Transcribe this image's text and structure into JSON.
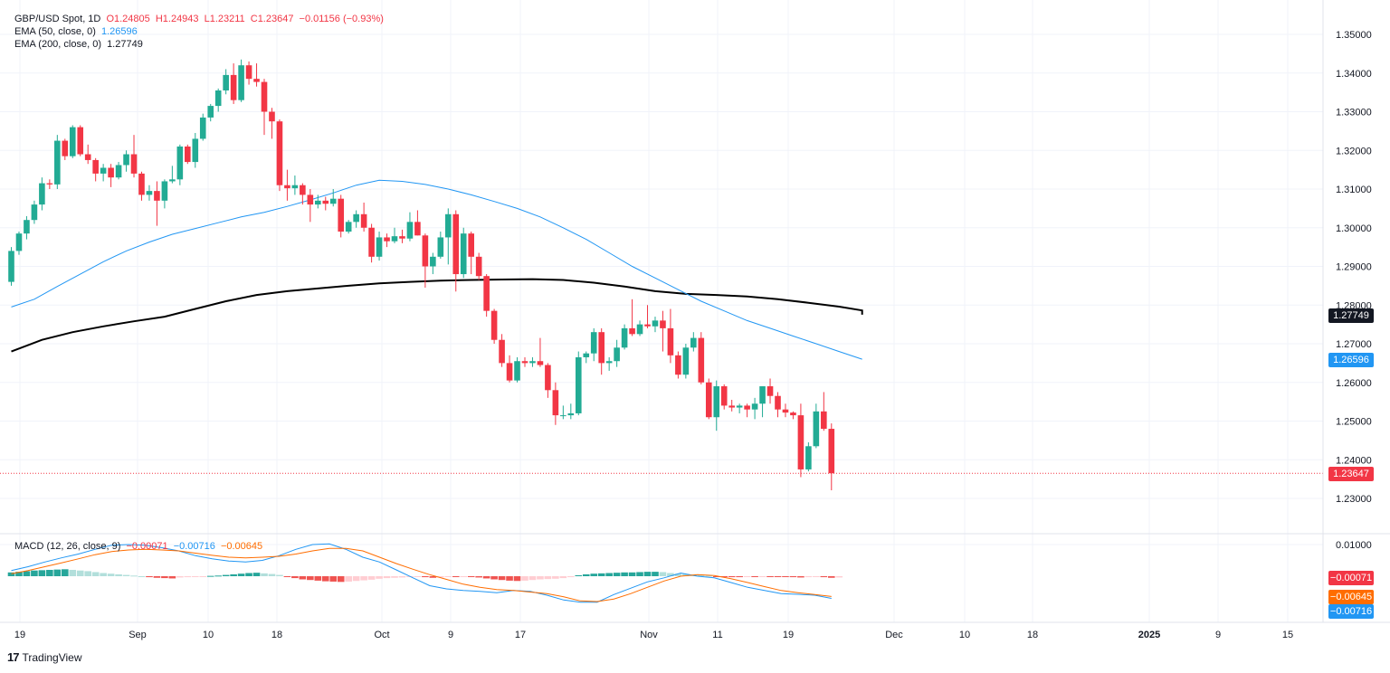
{
  "legend": {
    "symbol": "GBP/USD Spot, 1D",
    "open": "O1.24805",
    "high": "H1.24943",
    "low": "L1.23211",
    "close": "C1.23647",
    "change": "−0.01156 (−0.93%)",
    "ema50_label": "EMA (50, close, 0)",
    "ema50_value": "1.26596",
    "ema200_label": "EMA (200, close, 0)",
    "ema200_value": "1.27749",
    "macd_label": "MACD (12, 26, close, 9)",
    "macd_hist": "−0.00071",
    "macd_line": "−0.00716",
    "macd_signal": "−0.00645"
  },
  "badges": {
    "ema200": "1.27749",
    "ema50": "1.26596",
    "close": "1.23647",
    "hist": "−0.00071",
    "signal": "−0.00645",
    "macd": "−0.00716"
  },
  "branding": {
    "logo": "TradingView"
  },
  "colors": {
    "up": "#22ab94",
    "down": "#f23645",
    "ema50": "#2196f3",
    "ema200": "#000000",
    "macd": "#2196f3",
    "signal": "#ff6d00",
    "hist_pos": "#26a69a",
    "hist_pos_light": "#b2dfdb",
    "hist_neg": "#ef5350",
    "hist_neg_light": "#ffcdd2"
  },
  "chart_data": {
    "type": "candlestick",
    "price_axis_ticks": [
      "1.35000",
      "1.34000",
      "1.33000",
      "1.32000",
      "1.31000",
      "1.30000",
      "1.29000",
      "1.28000",
      "1.27000",
      "1.26000",
      "1.25000",
      "1.24000",
      "1.23000"
    ],
    "macd_axis_ticks": [
      "0.01000"
    ],
    "x_tick_labels": [
      "19",
      "Sep",
      "10",
      "18",
      "Oct",
      "9",
      "17",
      "Nov",
      "11",
      "19",
      "Dec",
      "10",
      "18",
      "2025",
      "9",
      "15"
    ],
    "ylim": [
      1.2275,
      1.3525
    ],
    "candles": [
      [
        1.286,
        1.295,
        1.285,
        1.294
      ],
      [
        1.294,
        1.299,
        1.293,
        1.2985
      ],
      [
        1.2985,
        1.303,
        1.297,
        1.302
      ],
      [
        1.302,
        1.307,
        1.301,
        1.306
      ],
      [
        1.306,
        1.313,
        1.3045,
        1.3115
      ],
      [
        1.3115,
        1.3125,
        1.31,
        1.3112
      ],
      [
        1.3112,
        1.324,
        1.31,
        1.3225
      ],
      [
        1.3225,
        1.323,
        1.3175,
        1.3185
      ],
      [
        1.3185,
        1.3265,
        1.318,
        1.326
      ],
      [
        1.326,
        1.3265,
        1.3185,
        1.319
      ],
      [
        1.319,
        1.3215,
        1.3165,
        1.3175
      ],
      [
        1.3175,
        1.318,
        1.312,
        1.314
      ],
      [
        1.314,
        1.3165,
        1.312,
        1.3155
      ],
      [
        1.3155,
        1.3165,
        1.3105,
        1.313
      ],
      [
        1.313,
        1.317,
        1.3125,
        1.3162
      ],
      [
        1.3162,
        1.32,
        1.3145,
        1.319
      ],
      [
        1.319,
        1.324,
        1.313,
        1.314
      ],
      [
        1.314,
        1.3145,
        1.307,
        1.3085
      ],
      [
        1.3085,
        1.311,
        1.307,
        1.3095
      ],
      [
        1.3095,
        1.312,
        1.3005,
        1.307
      ],
      [
        1.307,
        1.3125,
        1.305,
        1.312
      ],
      [
        1.312,
        1.316,
        1.3115,
        1.3125
      ],
      [
        1.3125,
        1.3215,
        1.311,
        1.321
      ],
      [
        1.321,
        1.3215,
        1.3165,
        1.317
      ],
      [
        1.317,
        1.3245,
        1.3155,
        1.323
      ],
      [
        1.323,
        1.3295,
        1.3225,
        1.3285
      ],
      [
        1.3285,
        1.332,
        1.3275,
        1.3315
      ],
      [
        1.3315,
        1.336,
        1.33,
        1.3355
      ],
      [
        1.3355,
        1.341,
        1.3345,
        1.3395
      ],
      [
        1.3395,
        1.3425,
        1.332,
        1.333
      ],
      [
        1.333,
        1.3435,
        1.3325,
        1.342
      ],
      [
        1.342,
        1.343,
        1.337,
        1.3385
      ],
      [
        1.3385,
        1.3425,
        1.3365,
        1.3377
      ],
      [
        1.3377,
        1.3385,
        1.324,
        1.33
      ],
      [
        1.33,
        1.331,
        1.323,
        1.3275
      ],
      [
        1.3275,
        1.328,
        1.3095,
        1.311
      ],
      [
        1.311,
        1.315,
        1.307,
        1.3102
      ],
      [
        1.3102,
        1.3135,
        1.3085,
        1.311
      ],
      [
        1.311,
        1.3115,
        1.306,
        1.3085
      ],
      [
        1.3085,
        1.31,
        1.3015,
        1.306
      ],
      [
        1.306,
        1.3085,
        1.305,
        1.307
      ],
      [
        1.307,
        1.308,
        1.3045,
        1.3062
      ],
      [
        1.3062,
        1.31,
        1.3055,
        1.3075
      ],
      [
        1.3075,
        1.3085,
        1.2975,
        1.299
      ],
      [
        1.299,
        1.302,
        1.2985,
        1.3015
      ],
      [
        1.3015,
        1.3045,
        1.3,
        1.3035
      ],
      [
        1.3035,
        1.3065,
        1.299,
        1.3
      ],
      [
        1.3,
        1.301,
        1.291,
        1.2925
      ],
      [
        1.2925,
        1.299,
        1.2915,
        1.2975
      ],
      [
        1.2975,
        1.2985,
        1.295,
        1.2965
      ],
      [
        1.2965,
        1.3,
        1.296,
        1.2978
      ],
      [
        1.2978,
        1.2995,
        1.296,
        1.2972
      ],
      [
        1.2972,
        1.304,
        1.2965,
        1.3015
      ],
      [
        1.3015,
        1.3045,
        1.298,
        1.298
      ],
      [
        1.298,
        1.2985,
        1.2845,
        1.29
      ],
      [
        1.29,
        1.2935,
        1.288,
        1.2925
      ],
      [
        1.2925,
        1.299,
        1.292,
        1.2975
      ],
      [
        1.2975,
        1.305,
        1.2905,
        1.3035
      ],
      [
        1.3035,
        1.3045,
        1.2835,
        1.288
      ],
      [
        1.288,
        1.3,
        1.287,
        1.2985
      ],
      [
        1.2985,
        1.299,
        1.288,
        1.2925
      ],
      [
        1.2925,
        1.2935,
        1.2865,
        1.2875
      ],
      [
        1.2875,
        1.288,
        1.277,
        1.2785
      ],
      [
        1.2785,
        1.279,
        1.27,
        1.271
      ],
      [
        1.271,
        1.2725,
        1.264,
        1.265
      ],
      [
        1.265,
        1.267,
        1.26,
        1.2605
      ],
      [
        1.2605,
        1.2665,
        1.26,
        1.2655
      ],
      [
        1.2655,
        1.2665,
        1.264,
        1.265
      ],
      [
        1.265,
        1.2665,
        1.264,
        1.2655
      ],
      [
        1.2655,
        1.2715,
        1.264,
        1.2645
      ],
      [
        1.2645,
        1.265,
        1.256,
        1.258
      ],
      [
        1.258,
        1.26,
        1.249,
        1.2515
      ],
      [
        1.2515,
        1.254,
        1.2505,
        1.2515
      ],
      [
        1.2515,
        1.2545,
        1.2505,
        1.252
      ],
      [
        1.252,
        1.268,
        1.2515,
        1.2665
      ],
      [
        1.2665,
        1.268,
        1.265,
        1.2675
      ],
      [
        1.2675,
        1.274,
        1.2655,
        1.273
      ],
      [
        1.273,
        1.274,
        1.262,
        1.265
      ],
      [
        1.265,
        1.2665,
        1.263,
        1.2655
      ],
      [
        1.2655,
        1.271,
        1.264,
        1.269
      ],
      [
        1.269,
        1.275,
        1.2685,
        1.274
      ],
      [
        1.274,
        1.2815,
        1.272,
        1.2725
      ],
      [
        1.2725,
        1.276,
        1.272,
        1.275
      ],
      [
        1.275,
        1.28,
        1.274,
        1.2745
      ],
      [
        1.2745,
        1.277,
        1.273,
        1.276
      ],
      [
        1.276,
        1.2785,
        1.268,
        1.274
      ],
      [
        1.274,
        1.279,
        1.265,
        1.267
      ],
      [
        1.267,
        1.268,
        1.261,
        1.262
      ],
      [
        1.262,
        1.27,
        1.261,
        1.269
      ],
      [
        1.269,
        1.273,
        1.268,
        1.2715
      ],
      [
        1.2715,
        1.273,
        1.2595,
        1.26
      ],
      [
        1.26,
        1.261,
        1.2505,
        1.251
      ],
      [
        1.251,
        1.2605,
        1.2475,
        1.259
      ],
      [
        1.259,
        1.2595,
        1.253,
        1.254
      ],
      [
        1.254,
        1.2555,
        1.2525,
        1.2535
      ],
      [
        1.2535,
        1.2545,
        1.252,
        1.254
      ],
      [
        1.254,
        1.2545,
        1.251,
        1.253
      ],
      [
        1.253,
        1.256,
        1.2505,
        1.2545
      ],
      [
        1.2545,
        1.259,
        1.251,
        1.259
      ],
      [
        1.259,
        1.261,
        1.2545,
        1.2565
      ],
      [
        1.2565,
        1.2575,
        1.251,
        1.253
      ],
      [
        1.253,
        1.2545,
        1.251,
        1.2522
      ],
      [
        1.2522,
        1.2525,
        1.2505,
        1.2515
      ],
      [
        1.2515,
        1.2545,
        1.2355,
        1.2375
      ],
      [
        1.2375,
        1.2445,
        1.237,
        1.2435
      ],
      [
        1.2435,
        1.2545,
        1.243,
        1.2525
      ],
      [
        1.2525,
        1.2575,
        1.2475,
        1.248
      ],
      [
        1.248,
        1.2494,
        1.2321,
        1.2365
      ]
    ],
    "ema50": [
      1.2795,
      1.2815,
      1.2848,
      1.288,
      1.2912,
      1.294,
      1.2963,
      1.2983,
      1.2998,
      1.3013,
      1.3028,
      1.304,
      1.3055,
      1.3072,
      1.309,
      1.311,
      1.3123,
      1.312,
      1.3112,
      1.31,
      1.3085,
      1.3068,
      1.305,
      1.3028,
      1.3,
      1.297,
      1.2935,
      1.29,
      1.287,
      1.284,
      1.281,
      1.2785,
      1.276,
      1.274,
      1.272,
      1.27,
      1.268,
      1.266
    ],
    "ema50_x": [
      0,
      3,
      6,
      9,
      12,
      15,
      18,
      21,
      24,
      27,
      30,
      33,
      36,
      39,
      42,
      45,
      48,
      51,
      54,
      57,
      60,
      63,
      66,
      69,
      72,
      75,
      78,
      81,
      84,
      87,
      90,
      93,
      96,
      99,
      102,
      105,
      108,
      111
    ],
    "ema200": [
      1.268,
      1.271,
      1.273,
      1.2745,
      1.2758,
      1.277,
      1.279,
      1.281,
      1.2826,
      1.2836,
      1.2843,
      1.285,
      1.2856,
      1.286,
      1.2863,
      1.2865,
      1.2866,
      1.2867,
      1.2865,
      1.2858,
      1.2848,
      1.2836,
      1.2829,
      1.2826,
      1.2822,
      1.2815,
      1.2806,
      1.2796,
      1.2786,
      1.2775
    ],
    "ema200_x": [
      0,
      4,
      8,
      12,
      16,
      20,
      24,
      28,
      32,
      36,
      40,
      44,
      48,
      52,
      56,
      60,
      64,
      68,
      72,
      76,
      80,
      84,
      88,
      92,
      96,
      100,
      104,
      108,
      111,
      111
    ],
    "macd_ylim": [
      -0.0085,
      0.0135
    ],
    "macd_hist": [
      0.0012,
      0.0014,
      0.0016,
      0.0018,
      0.0019,
      0.002,
      0.0021,
      0.0022,
      0.002,
      0.0018,
      0.0016,
      0.0013,
      0.001,
      0.0008,
      0.0006,
      0.0004,
      0.0002,
      0.0,
      -0.0003,
      -0.0005,
      -0.0006,
      -0.0007,
      -0.0004,
      -0.0003,
      -0.0002,
      -0.0001,
      0.0001,
      0.0002,
      0.0004,
      0.0006,
      0.0008,
      0.001,
      0.0011,
      0.0009,
      0.0007,
      0.0004,
      -0.0002,
      -0.0006,
      -0.001,
      -0.0012,
      -0.0014,
      -0.0016,
      -0.0017,
      -0.0018,
      -0.0017,
      -0.0015,
      -0.0013,
      -0.0011,
      -0.0008,
      -0.0006,
      -0.0005,
      -0.0004,
      -0.0002,
      -0.0001,
      -0.0003,
      -0.0005,
      -0.0004,
      -0.0002,
      -0.0002,
      -0.0001,
      -0.0002,
      -0.0004,
      -0.0007,
      -0.001,
      -0.0012,
      -0.0014,
      -0.0015,
      -0.0014,
      -0.0012,
      -0.001,
      -0.0009,
      -0.0008,
      -0.0006,
      -0.0003,
      0.0003,
      0.0006,
      0.0008,
      0.0009,
      0.001,
      0.0011,
      0.0012,
      0.0012,
      0.0013,
      0.0014,
      0.0014,
      0.0013,
      0.001,
      0.0008,
      0.0007,
      0.0006,
      0.0004,
      0.0002,
      -0.0002,
      -0.0003,
      -0.0003,
      -0.0003,
      -0.0002,
      -0.0002,
      -0.0001,
      -0.0001,
      -0.0002,
      -0.0002,
      -0.0003,
      -0.0004,
      -0.0003,
      -0.0001,
      -0.0003,
      -0.0005,
      -0.0004
    ],
    "macd_line": [
      0.0018,
      0.003,
      0.0045,
      0.0058,
      0.007,
      0.0085,
      0.0098,
      0.01,
      0.0098,
      0.009,
      0.008,
      0.0065,
      0.0055,
      0.0048,
      0.0045,
      0.005,
      0.0065,
      0.0085,
      0.01,
      0.0102,
      0.0085,
      0.006,
      0.0045,
      0.002,
      -0.0005,
      -0.003,
      -0.004,
      -0.0045,
      -0.0048,
      -0.0052,
      -0.0045,
      -0.0048,
      -0.006,
      -0.0075,
      -0.0082,
      -0.0082,
      -0.0058,
      -0.0038,
      -0.0018,
      -0.0005,
      0.001,
      0.0,
      -0.0005,
      -0.002,
      -0.0035,
      -0.0045,
      -0.0055,
      -0.0057,
      -0.006,
      -0.007
    ],
    "signal_line": [
      0.0008,
      0.0018,
      0.003,
      0.0042,
      0.0055,
      0.0068,
      0.0078,
      0.0083,
      0.0085,
      0.0083,
      0.008,
      0.0073,
      0.0066,
      0.006,
      0.0058,
      0.006,
      0.0063,
      0.007,
      0.008,
      0.0088,
      0.0088,
      0.008,
      0.006,
      0.004,
      0.0022,
      0.0005,
      -0.001,
      -0.0025,
      -0.0035,
      -0.0042,
      -0.0045,
      -0.005,
      -0.0055,
      -0.0065,
      -0.0078,
      -0.008,
      -0.0072,
      -0.0055,
      -0.0035,
      -0.0015,
      0.0,
      0.0005,
      0.0002,
      -0.0008,
      -0.002,
      -0.0033,
      -0.0045,
      -0.0052,
      -0.0058,
      -0.0064
    ]
  }
}
